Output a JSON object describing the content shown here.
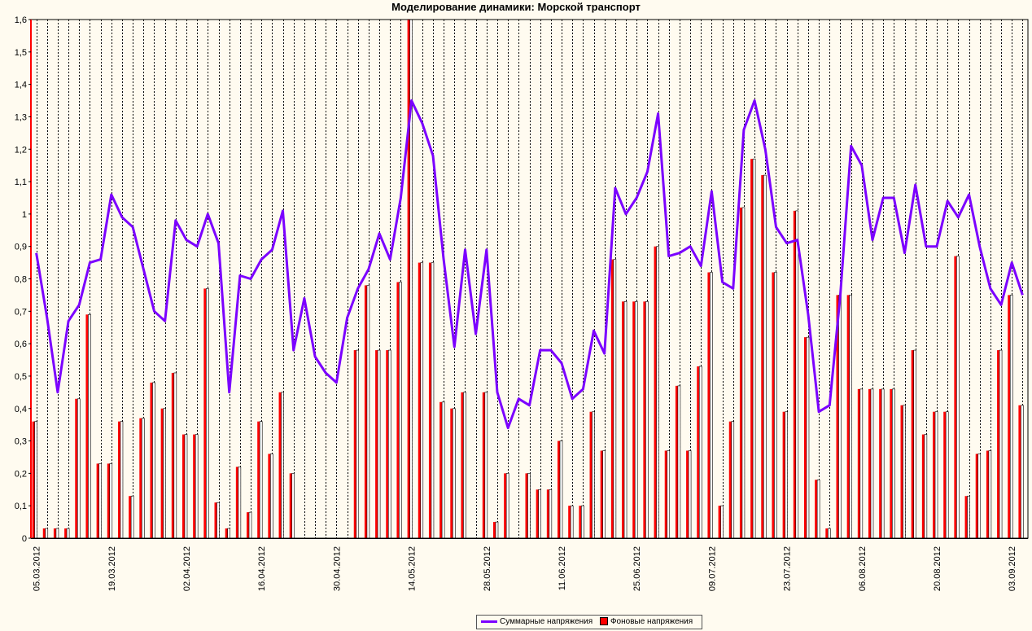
{
  "chart_data": {
    "type": "bar+line",
    "title": "Моделирование динамики: Морской транспорт",
    "ylim": [
      0,
      1.6
    ],
    "y_ticks": [
      "0",
      "0,1",
      "0,2",
      "0,3",
      "0,4",
      "0,5",
      "0,6",
      "0,7",
      "0,8",
      "0,9",
      "1",
      "1,1",
      "1,2",
      "1,3",
      "1,4",
      "1,5",
      "1,6"
    ],
    "x_tick_labels": [
      "05.03.2012",
      "19.03.2012",
      "02.04.2012",
      "16.04.2012",
      "30.04.2012",
      "14.05.2012",
      "28.05.2012",
      "11.06.2012",
      "25.06.2012",
      "09.07.2012",
      "23.07.2012",
      "06.08.2012",
      "20.08.2012",
      "03.09.2012"
    ],
    "grid": "vertical dashed",
    "legend_position": "bottom",
    "series": [
      {
        "name": "Суммарные напряжения",
        "type": "line",
        "color": "#7b00ff",
        "values": [
          0.88,
          0.68,
          0.45,
          0.67,
          0.72,
          0.85,
          0.86,
          1.06,
          0.99,
          0.96,
          0.83,
          0.7,
          0.67,
          0.98,
          0.92,
          0.9,
          1.0,
          0.91,
          0.45,
          0.81,
          0.8,
          0.86,
          0.89,
          1.01,
          0.58,
          0.74,
          0.56,
          0.51,
          0.48,
          0.68,
          0.77,
          0.83,
          0.94,
          0.86,
          1.05,
          1.35,
          1.28,
          1.18,
          0.86,
          0.59,
          0.89,
          0.63,
          0.89,
          0.45,
          0.34,
          0.43,
          0.41,
          0.58,
          0.58,
          0.54,
          0.43,
          0.46,
          0.64,
          0.57,
          1.08,
          1.0,
          1.05,
          1.13,
          1.31,
          0.87,
          0.88,
          0.9,
          0.84,
          1.07,
          0.79,
          0.77,
          1.26,
          1.35,
          1.2,
          0.96,
          0.91,
          0.92,
          0.69,
          0.39,
          0.41,
          0.75,
          1.21,
          1.15,
          0.92,
          1.05,
          1.05,
          0.88,
          1.09,
          0.9,
          0.9,
          1.04,
          0.99,
          1.06,
          0.9,
          0.77,
          0.72,
          0.85,
          0.75
        ]
      },
      {
        "name": "Фоновые напряжения",
        "type": "bar",
        "color": "#ff0000",
        "values": [
          0.36,
          0.03,
          0.03,
          0.03,
          0.43,
          0.69,
          0.23,
          0.23,
          0.36,
          0.13,
          0.37,
          0.48,
          0.4,
          0.51,
          0.32,
          0.32,
          0.77,
          0.11,
          0.03,
          0.22,
          0.08,
          0.36,
          0.26,
          0.45,
          0.2,
          0.0,
          0.0,
          0.0,
          0.0,
          0.0,
          0.58,
          0.78,
          0.58,
          0.58,
          0.79,
          1.6,
          0.85,
          0.85,
          0.42,
          0.4,
          0.45,
          0.0,
          0.45,
          0.05,
          0.2,
          0.0,
          0.2,
          0.15,
          0.15,
          0.3,
          0.1,
          0.1,
          0.39,
          0.27,
          0.86,
          0.73,
          0.73,
          0.73,
          0.9,
          0.27,
          0.47,
          0.27,
          0.53,
          0.82,
          0.1,
          0.36,
          1.02,
          1.17,
          1.12,
          0.82,
          0.39,
          1.01,
          0.62,
          0.18,
          0.03,
          0.75,
          0.75,
          0.46,
          0.46,
          0.46,
          0.46,
          0.41,
          0.58,
          0.32,
          0.39,
          0.39,
          0.87,
          0.13,
          0.26,
          0.27,
          0.58,
          0.75,
          0.41
        ]
      }
    ]
  }
}
